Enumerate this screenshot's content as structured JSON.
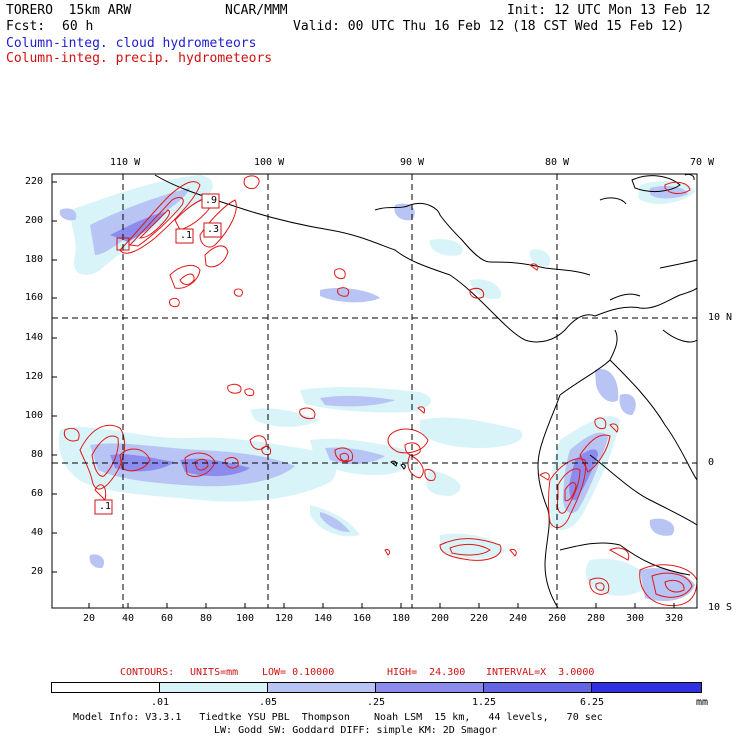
{
  "header": {
    "model": "TORERO  15km ARW",
    "center": "NCAR/MMM",
    "init": "Init: 12 UTC Mon 13 Feb 12",
    "fcst_label": "Fcst:",
    "fcst_value": "60 h",
    "valid": "Valid: 00 UTC Thu 16 Feb 12 (18 CST Wed 15 Feb 12)",
    "legend_cloud": "Column-integ. cloud hydrometeors",
    "legend_precip": "Column-integ. precip. hydrometeors"
  },
  "axes": {
    "top_lon": [
      "110 W",
      "100 W",
      "90 W",
      "80 W",
      "70 W"
    ],
    "right_lat": [
      "10 N",
      "0",
      "10 S"
    ],
    "y_ticks": [
      "220",
      "200",
      "180",
      "160",
      "140",
      "120",
      "100",
      "80",
      "60",
      "40",
      "20"
    ],
    "x_ticks": [
      "20",
      "40",
      "60",
      "80",
      "100",
      "120",
      "140",
      "160",
      "180",
      "200",
      "220",
      "240",
      "260",
      "280",
      "300",
      "320"
    ]
  },
  "map_labels": [
    ".9",
    ".1",
    ".3",
    ".1"
  ],
  "contours": {
    "label": "CONTOURS:",
    "units": "UNITS=mm",
    "low": "LOW= 0.10000",
    "high": "HIGH=  24.300",
    "interval": "INTERVAL=X  3.0000"
  },
  "colorbar": {
    "labels": [
      ".01",
      ".05",
      ".25",
      "1.25",
      "6.25",
      "mm"
    ],
    "colors": [
      "#ffffff",
      "#d8f4f8",
      "#b8c4f4",
      "#8c8cee",
      "#6464e6",
      "#3030e0"
    ]
  },
  "footer": {
    "line1": "Model Info: V3.3.1   Tiedtke YSU PBL  Thompson    Noah LSM  15 km,   44 levels,   70 sec",
    "line2": "LW: Godd SW: Goddard DIFF: simple KM: 2D Smagor"
  }
}
